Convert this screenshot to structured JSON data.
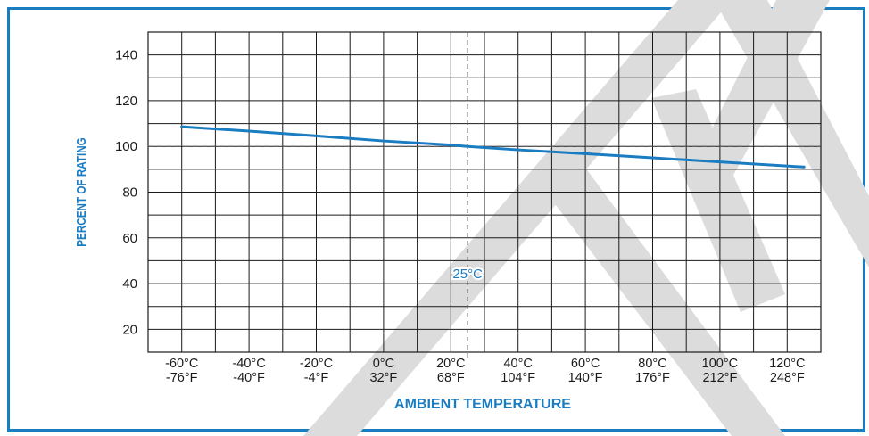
{
  "chart_data": {
    "type": "line",
    "xlabel": "AMBIENT TEMPERATURE",
    "ylabel": "PERCENT OF RATING",
    "x_units": "°C",
    "xlim": [
      -70,
      130
    ],
    "ylim": [
      10,
      150
    ],
    "y_ticks": [
      20,
      40,
      60,
      80,
      100,
      120,
      140
    ],
    "x_ticks": [
      {
        "value": -60,
        "c": "-60°C",
        "f": "-76°F"
      },
      {
        "value": -40,
        "c": "-40°C",
        "f": "-40°F"
      },
      {
        "value": -20,
        "c": "-20°C",
        "f": "-4°F"
      },
      {
        "value": 0,
        "c": "0°C",
        "f": "32°F"
      },
      {
        "value": 20,
        "c": "20°C",
        "f": "68°F"
      },
      {
        "value": 40,
        "c": "40°C",
        "f": "104°F"
      },
      {
        "value": 60,
        "c": "60°C",
        "f": "140°F"
      },
      {
        "value": 80,
        "c": "80°C",
        "f": "176°F"
      },
      {
        "value": 100,
        "c": "100°C",
        "f": "212°F"
      },
      {
        "value": 120,
        "c": "120°C",
        "f": "248°F"
      }
    ],
    "series": [
      {
        "color": "#1a7cc1",
        "x": [
          -60,
          -40,
          -20,
          0,
          20,
          25,
          40,
          60,
          80,
          100,
          125
        ],
        "y": [
          108.6,
          106.7,
          104.6,
          102.4,
          100.6,
          100.0,
          98.5,
          96.8,
          95.0,
          93.2,
          91.0
        ]
      }
    ],
    "reference_lines": [
      {
        "axis": "x",
        "value": 25,
        "label": "25°C",
        "style": "dashed"
      },
      {
        "axis": "y",
        "value": 100,
        "style": "dashed"
      }
    ],
    "grid": true
  },
  "colors": {
    "accent": "#1a7cc1",
    "grid": "#1a1a1a",
    "watermark": "#dcdcdc"
  }
}
